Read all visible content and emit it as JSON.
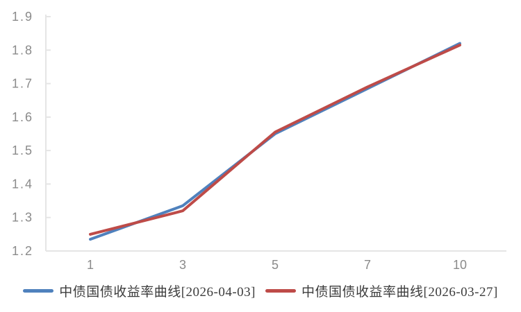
{
  "chart_data": {
    "type": "line",
    "categories": [
      "1",
      "3",
      "5",
      "7",
      "10"
    ],
    "series": [
      {
        "name": "中债国债收益率曲线[2026-04-03]",
        "color": "#4F81BD",
        "values": [
          1.235,
          1.335,
          1.55,
          1.685,
          1.82
        ]
      },
      {
        "name": "中债国债收益率曲线[2026-03-27]",
        "color": "#BE4B48",
        "values": [
          1.25,
          1.32,
          1.555,
          1.69,
          1.815
        ]
      }
    ],
    "title": "",
    "xlabel": "",
    "ylabel": "",
    "ylim": [
      1.2,
      1.9
    ],
    "ytick_step": 0.1,
    "yticks": [
      "1.2",
      "1.3",
      "1.4",
      "1.5",
      "1.6",
      "1.7",
      "1.8",
      "1.9"
    ],
    "grid": false,
    "legend_position": "bottom"
  },
  "style": {
    "axis_line_color": "#e5e5e5",
    "tick_label_color": "#8a8a8a",
    "legend_text_color": "#3c3c3c",
    "background": "#ffffff",
    "line_width": 4
  }
}
